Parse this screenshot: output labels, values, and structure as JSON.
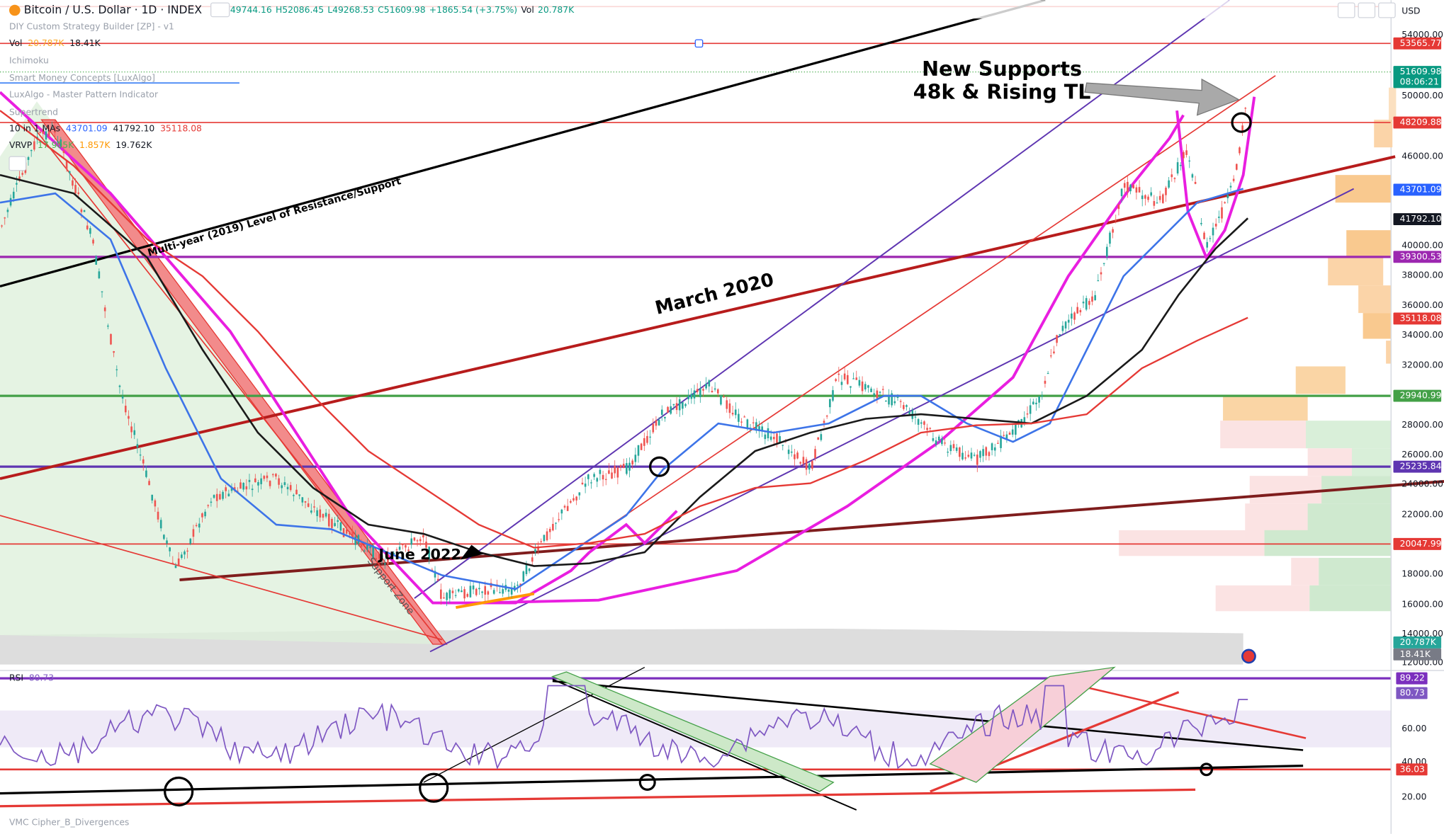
{
  "header": {
    "symbol": "Bitcoin / U.S. Dollar · 1D · INDEX",
    "open": "49744.16",
    "high": "H52086.45",
    "low": "L49268.53",
    "close": "C51609.98",
    "change": "+1865.54 (+3.75%)",
    "vol_label": "Vol",
    "vol": "20.787K",
    "currency": "USD"
  },
  "indicators": [
    {
      "name": "DIY Custom Strategy Builder [ZP] - v1",
      "values": []
    },
    {
      "name": "Vol",
      "values": [
        "20.787K",
        "18.41K"
      ]
    },
    {
      "name": "Ichimoku",
      "values": []
    },
    {
      "name": "Smart Money Concepts [LuxAlgo]",
      "values": []
    },
    {
      "name": "LuxAlgo - Master Pattern Indicator",
      "values": []
    },
    {
      "name": "Supertrend",
      "values": []
    },
    {
      "name": "10 in 1 MAs",
      "values": [
        "43701.09",
        "41792.10",
        "35118.08"
      ]
    },
    {
      "name": "VRVP",
      "values": [
        "17.905K",
        "1.857K",
        "19.762K"
      ]
    }
  ],
  "rsi": {
    "name": "RSI",
    "value": "80.73"
  },
  "bottom_indicator": "VMC Cipher_B_Divergences",
  "annotations": {
    "new_supports": "New Supports",
    "rising_tl": "48k & Rising TL",
    "march": "March 2020",
    "multi_year": "Multi-year (2019) Level of Resistance/Support",
    "june": "June 2022",
    "support_zone": "Support Zone"
  },
  "price_axis": [
    "54000.00",
    "50000.00",
    "46000.00",
    "40000.00",
    "38000.00",
    "36000.00",
    "34000.00",
    "32000.00",
    "28000.00",
    "26000.00",
    "24000.00",
    "22000.00",
    "18000.00",
    "16000.00",
    "14000.00",
    "12000.00"
  ],
  "price_labels": [
    "53565.77",
    "51609.98",
    "08:06:21",
    "48209.88",
    "43701.09",
    "41792.10",
    "39300.53",
    "35118.08",
    "29940.99",
    "25235.84",
    "20047.99",
    "20.787K",
    "18.41K"
  ],
  "rsi_axis": [
    "60.00",
    "40.00",
    "20.00"
  ],
  "rsi_labels": [
    "89.22",
    "80.73",
    "36.03"
  ]
}
